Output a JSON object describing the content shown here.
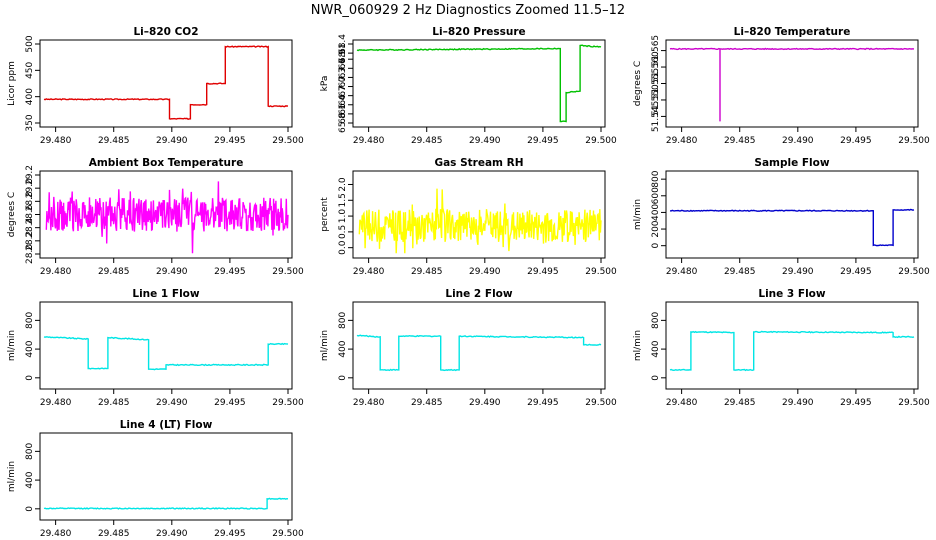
{
  "title": "NWR_060929  2 Hz Diagnostics Zoomed 11.5–12",
  "chart_data": [
    {
      "type": "line",
      "title": "Li–820 CO2",
      "ylabel": "Licor ppm",
      "color": "#e00000",
      "xlim": [
        29.479,
        29.5
      ],
      "ylim": [
        350,
        500
      ],
      "xticks": [
        "29.480",
        "29.485",
        "29.490",
        "29.495",
        "29.500"
      ],
      "yticks": [
        "350",
        "400",
        "450",
        "500"
      ],
      "series": [
        {
          "x": [
            29.479,
            29.4898,
            29.4898,
            29.4916,
            29.4916,
            29.493,
            29.493,
            29.4946,
            29.4946,
            29.4983,
            29.4983,
            29.5
          ],
          "y": [
            395,
            395,
            358,
            358,
            385,
            385,
            425,
            425,
            495,
            495,
            382,
            382
          ]
        }
      ]
    },
    {
      "type": "line",
      "title": "Li–820 Pressure",
      "ylabel": "kPa",
      "color": "#00c000",
      "xlim": [
        29.479,
        29.5
      ],
      "ylim": [
        65.8,
        68.4
      ],
      "xticks": [
        "29.480",
        "29.485",
        "29.490",
        "29.495",
        "29.500"
      ],
      "yticks": [
        "65.8",
        "66.1",
        "66.4",
        "66.7",
        "67.0",
        "67.3",
        "67.6",
        "67.9",
        "68.1",
        "68.4"
      ],
      "series": [
        {
          "x": [
            29.479,
            29.4965,
            29.4965,
            29.497,
            29.497,
            29.4982,
            29.4982,
            29.5
          ],
          "y": [
            68.2,
            68.25,
            65.85,
            65.85,
            66.8,
            66.85,
            68.35,
            68.3
          ]
        }
      ]
    },
    {
      "type": "line",
      "title": "Li–820 Temperature",
      "ylabel": "degrees C",
      "color": "#cc00cc",
      "xlim": [
        29.479,
        29.5
      ],
      "ylim": [
        51.543,
        51.567
      ],
      "xticks": [
        "29.480",
        "29.485",
        "29.490",
        "29.495",
        "29.500"
      ],
      "yticks": [
        "51.545",
        "51.550",
        "51.555",
        "51.560",
        "51.565"
      ],
      "series": [
        {
          "x": [
            29.479,
            29.4833,
            29.4833,
            29.4833,
            29.5
          ],
          "y": [
            51.5655,
            51.5655,
            51.5435,
            51.5655,
            51.5655
          ]
        }
      ]
    },
    {
      "type": "line",
      "title": "Ambient Box Temperature",
      "ylabel": "degrees C",
      "color": "#ff00ff",
      "xlim": [
        29.479,
        29.5
      ],
      "ylim": [
        28.0,
        29.2
      ],
      "xticks": [
        "29.480",
        "29.485",
        "29.490",
        "29.495",
        "29.500"
      ],
      "yticks": [
        "28.0",
        "28.2",
        "28.4",
        "28.6",
        "28.8",
        "29.0",
        "29.2"
      ],
      "noise": {
        "center": 28.6,
        "amp": 0.4,
        "seed": 4
      }
    },
    {
      "type": "line",
      "title": "Gas Stream RH",
      "ylabel": "percent",
      "color": "#ffff00",
      "xlim": [
        29.479,
        29.5
      ],
      "ylim": [
        -0.2,
        2.3
      ],
      "xticks": [
        "29.480",
        "29.485",
        "29.490",
        "29.495",
        "29.500"
      ],
      "yticks": [
        "0.0",
        "0.5",
        "1.0",
        "1.5",
        "2.0"
      ],
      "noise": {
        "center": 0.7,
        "amp": 0.8,
        "seed": 9
      }
    },
    {
      "type": "line",
      "title": "Sample Flow",
      "ylabel": "ml/min",
      "color": "#0000cc",
      "xlim": [
        29.479,
        29.5
      ],
      "ylim": [
        -100,
        850
      ],
      "xticks": [
        "29.480",
        "29.485",
        "29.490",
        "29.495",
        "29.500"
      ],
      "yticks": [
        "0",
        "200",
        "400",
        "600",
        "800"
      ],
      "series": [
        {
          "x": [
            29.479,
            29.4965,
            29.4965,
            29.4982,
            29.4982,
            29.5
          ],
          "y": [
            420,
            420,
            5,
            5,
            430,
            430
          ]
        }
      ]
    },
    {
      "type": "line",
      "title": "Line 1 Flow",
      "ylabel": "ml/min",
      "color": "#00e5e5",
      "xlim": [
        29.479,
        29.5
      ],
      "ylim": [
        -100,
        1000
      ],
      "xticks": [
        "29.480",
        "29.485",
        "29.490",
        "29.495",
        "29.500"
      ],
      "yticks": [
        "0",
        "400",
        "800"
      ],
      "series": [
        {
          "x": [
            29.479,
            29.4828,
            29.4828,
            29.4845,
            29.4845,
            29.488,
            29.488,
            29.4895,
            29.4895,
            29.4983,
            29.4983,
            29.5
          ],
          "y": [
            570,
            540,
            130,
            130,
            560,
            530,
            120,
            120,
            180,
            180,
            470,
            470
          ]
        }
      ]
    },
    {
      "type": "line",
      "title": "Line 2 Flow",
      "ylabel": "ml/min",
      "color": "#00e5e5",
      "xlim": [
        29.479,
        29.5
      ],
      "ylim": [
        -100,
        1000
      ],
      "xticks": [
        "29.480",
        "29.485",
        "29.490",
        "29.495",
        "29.500"
      ],
      "yticks": [
        "0",
        "400",
        "800"
      ],
      "series": [
        {
          "x": [
            29.479,
            29.481,
            29.481,
            29.4826,
            29.4826,
            29.4862,
            29.4862,
            29.4878,
            29.4878,
            29.4985,
            29.4985,
            29.5
          ],
          "y": [
            590,
            570,
            110,
            110,
            580,
            580,
            110,
            110,
            580,
            560,
            460,
            460
          ]
        }
      ]
    },
    {
      "type": "line",
      "title": "Line 3 Flow",
      "ylabel": "ml/min",
      "color": "#00e5e5",
      "xlim": [
        29.479,
        29.5
      ],
      "ylim": [
        -100,
        1000
      ],
      "xticks": [
        "29.480",
        "29.485",
        "29.490",
        "29.495",
        "29.500"
      ],
      "yticks": [
        "0",
        "400",
        "800"
      ],
      "series": [
        {
          "x": [
            29.479,
            29.4808,
            29.4808,
            29.4845,
            29.4845,
            29.4862,
            29.4862,
            29.4982,
            29.4982,
            29.5
          ],
          "y": [
            110,
            110,
            640,
            630,
            110,
            110,
            640,
            630,
            570,
            570
          ]
        }
      ]
    },
    {
      "type": "line",
      "title": "Line 4 (LT) Flow",
      "ylabel": "ml/min",
      "color": "#00e5e5",
      "xlim": [
        29.479,
        29.5
      ],
      "ylim": [
        -100,
        1000
      ],
      "xticks": [
        "29.480",
        "29.485",
        "29.490",
        "29.495",
        "29.500"
      ],
      "yticks": [
        "0",
        "400",
        "800"
      ],
      "series": [
        {
          "x": [
            29.479,
            29.4982,
            29.4982,
            29.5
          ],
          "y": [
            5,
            5,
            140,
            140
          ]
        }
      ]
    }
  ]
}
